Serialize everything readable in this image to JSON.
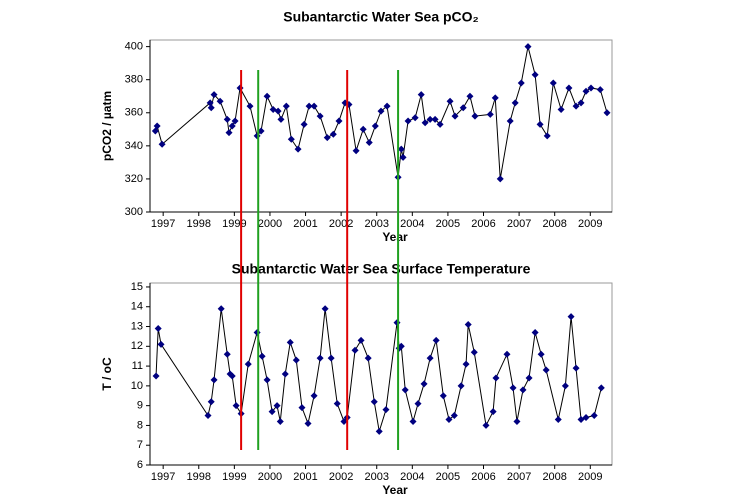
{
  "chart_data": [
    {
      "type": "line",
      "title": "Subantarctic Water Sea pCO₂",
      "x_label": "Year",
      "y_label": "pCO2 / µatm",
      "line_color": "#000000",
      "marker_color": "#000080",
      "xlim": [
        1996.63,
        2009.61
      ],
      "xticks": [
        1997,
        1998,
        1999,
        2000,
        2001,
        2002,
        2003,
        2004,
        2005,
        2006,
        2007,
        2008,
        2009
      ],
      "ylim": [
        300,
        404
      ],
      "yticks": [
        300,
        320,
        340,
        360,
        380,
        400
      ],
      "vlines": [
        {
          "x": 1999.19,
          "color": "#e00000"
        },
        {
          "x": 1999.67,
          "color": "#20a020"
        },
        {
          "x": 2002.17,
          "color": "#e00000"
        },
        {
          "x": 2003.6,
          "color": "#20a020"
        }
      ],
      "x": [
        1996.78,
        1996.83,
        1996.97,
        1998.32,
        1998.35,
        1998.43,
        1998.6,
        1998.8,
        1998.85,
        1998.94,
        1999.02,
        1999.16,
        1999.44,
        1999.64,
        1999.75,
        1999.92,
        2000.09,
        2000.23,
        2000.31,
        2000.46,
        2000.6,
        2000.79,
        2000.96,
        2001.1,
        2001.24,
        2001.41,
        2001.61,
        2001.78,
        2001.94,
        2002.11,
        2002.22,
        2002.42,
        2002.62,
        2002.79,
        2002.96,
        2003.12,
        2003.29,
        2003.6,
        2003.69,
        2003.74,
        2003.88,
        2004.08,
        2004.25,
        2004.36,
        2004.5,
        2004.64,
        2004.78,
        2005.06,
        2005.2,
        2005.43,
        2005.62,
        2005.76,
        2006.19,
        2006.33,
        2006.47,
        2006.75,
        2006.89,
        2007.06,
        2007.25,
        2007.45,
        2007.59,
        2007.79,
        2007.96,
        2008.18,
        2008.4,
        2008.6,
        2008.74,
        2008.88,
        2009.02,
        2009.28,
        2009.47
      ],
      "values": [
        349,
        352,
        341,
        366,
        363,
        371,
        367,
        356,
        348,
        352,
        355,
        375,
        364,
        346,
        349,
        370,
        362,
        361,
        356,
        364,
        344,
        338,
        353,
        364,
        364,
        358,
        345,
        347,
        355,
        366,
        365,
        337,
        350,
        342,
        352,
        361,
        364,
        321,
        338,
        333,
        355,
        357,
        371,
        354,
        356,
        356,
        353,
        367,
        358,
        363,
        370,
        358,
        359,
        369,
        320,
        355,
        366,
        378,
        400,
        383,
        353,
        346,
        378,
        362,
        375,
        364,
        366,
        373,
        375,
        374,
        360
      ]
    },
    {
      "type": "line",
      "title": "Subantarctic Water Sea Surface Temperature",
      "x_label": "Year",
      "y_label": "T / oC",
      "line_color": "#000000",
      "marker_color": "#000080",
      "xlim": [
        1996.63,
        2009.61
      ],
      "xticks": [
        1997,
        1998,
        1999,
        2000,
        2001,
        2002,
        2003,
        2004,
        2005,
        2006,
        2007,
        2008,
        2009
      ],
      "ylim": [
        6,
        15.2
      ],
      "yticks": [
        6,
        7,
        8,
        9,
        10,
        11,
        12,
        13,
        14,
        15
      ],
      "x": [
        1996.8,
        1996.86,
        1996.94,
        1998.26,
        1998.35,
        1998.43,
        1998.63,
        1998.8,
        1998.88,
        1998.94,
        1999.05,
        1999.19,
        1999.39,
        1999.64,
        1999.78,
        1999.92,
        2000.06,
        2000.2,
        2000.29,
        2000.43,
        2000.57,
        2000.74,
        2000.9,
        2001.07,
        2001.24,
        2001.41,
        2001.55,
        2001.72,
        2001.89,
        2002.08,
        2002.17,
        2002.39,
        2002.56,
        2002.76,
        2002.93,
        2003.07,
        2003.26,
        2003.57,
        2003.63,
        2003.69,
        2003.8,
        2004.02,
        2004.16,
        2004.33,
        2004.5,
        2004.67,
        2004.87,
        2005.03,
        2005.18,
        2005.37,
        2005.51,
        2005.57,
        2005.74,
        2006.07,
        2006.27,
        2006.35,
        2006.66,
        2006.83,
        2006.94,
        2007.11,
        2007.28,
        2007.45,
        2007.62,
        2007.76,
        2008.1,
        2008.3,
        2008.46,
        2008.6,
        2008.74,
        2008.88,
        2009.11,
        2009.31
      ],
      "values": [
        10.5,
        12.9,
        12.1,
        8.5,
        9.2,
        10.3,
        13.9,
        11.6,
        10.6,
        10.5,
        9.0,
        8.6,
        11.1,
        12.7,
        11.5,
        10.3,
        8.7,
        9.0,
        8.2,
        10.6,
        12.2,
        11.3,
        8.9,
        8.1,
        9.5,
        11.4,
        13.9,
        11.4,
        9.1,
        8.2,
        8.4,
        11.8,
        12.3,
        11.4,
        9.2,
        7.7,
        8.8,
        13.2,
        11.9,
        12.0,
        9.8,
        8.2,
        9.1,
        10.1,
        11.4,
        12.3,
        9.5,
        8.3,
        8.5,
        10.0,
        11.1,
        13.1,
        11.7,
        8.0,
        8.7,
        10.4,
        11.6,
        9.9,
        8.2,
        9.8,
        10.4,
        12.7,
        11.6,
        10.8,
        8.3,
        10.0,
        13.5,
        10.9,
        8.3,
        8.4,
        8.5,
        9.9
      ]
    }
  ]
}
